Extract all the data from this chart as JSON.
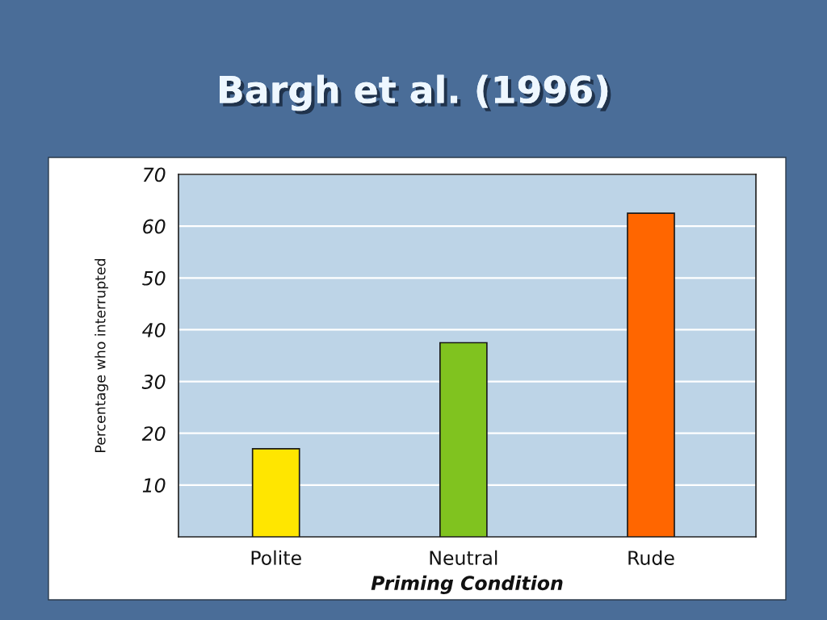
{
  "chart_data": {
    "type": "bar",
    "title": "Bargh et al. (1996)",
    "xlabel": "Priming Condition",
    "ylabel": "Percentage who interrupted",
    "categories": [
      "Polite",
      "Neutral",
      "Rude"
    ],
    "values": [
      17,
      37.5,
      62.5
    ],
    "colors": [
      "#ffe600",
      "#80c31f",
      "#ff6600"
    ],
    "ylim": [
      0,
      70
    ],
    "yticks": [
      10,
      20,
      30,
      40,
      50,
      60,
      70
    ],
    "grid": "y"
  }
}
